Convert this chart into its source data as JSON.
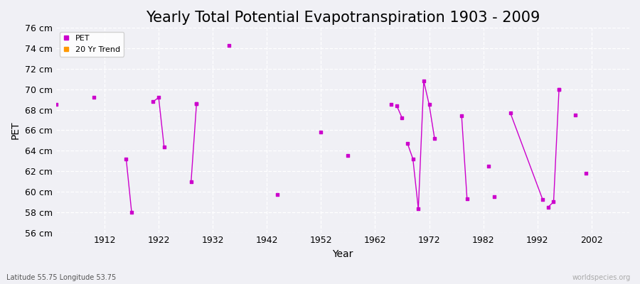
{
  "title": "Yearly Total Potential Evapotranspiration 1903 - 2009",
  "xlabel": "Year",
  "ylabel": "PET",
  "xlim": [
    1903,
    2009
  ],
  "ylim": [
    56,
    76
  ],
  "yticks": [
    56,
    58,
    60,
    62,
    64,
    66,
    68,
    70,
    72,
    74,
    76
  ],
  "ytick_labels": [
    "56 cm",
    "58 cm",
    "60 cm",
    "62 cm",
    "64 cm",
    "66 cm",
    "68 cm",
    "70 cm",
    "72 cm",
    "74 cm",
    "76 cm"
  ],
  "xticks": [
    1912,
    1922,
    1932,
    1942,
    1952,
    1962,
    1972,
    1982,
    1992,
    2002
  ],
  "pet_color": "#cc00cc",
  "trend_color": "#ff9900",
  "background_color": "#f0f0f5",
  "plot_bg_color": "#f0f0f5",
  "grid_color": "#ffffff",
  "isolated_points": [
    [
      1903,
      68.5
    ],
    [
      1910,
      69.2
    ],
    [
      1929,
      68.6
    ],
    [
      1935,
      74.3
    ],
    [
      1944,
      59.7
    ],
    [
      1952,
      65.8
    ],
    [
      1957,
      63.5
    ],
    [
      1965,
      68.5
    ],
    [
      1983,
      62.5
    ],
    [
      1984,
      59.5
    ],
    [
      1996,
      70.0
    ],
    [
      1999,
      67.5
    ],
    [
      2001,
      61.8
    ]
  ],
  "segments": [
    [
      [
        1916,
        63.2
      ],
      [
        1917,
        58.0
      ]
    ],
    [
      [
        1921,
        68.8
      ],
      [
        1922,
        69.2
      ],
      [
        1923,
        64.4
      ]
    ],
    [
      [
        1928,
        61.0
      ],
      [
        1929,
        68.6
      ]
    ],
    [
      [
        1966,
        68.4
      ],
      [
        1967,
        67.2
      ]
    ],
    [
      [
        1968,
        64.7
      ],
      [
        1969,
        63.2
      ],
      [
        1970,
        58.3
      ],
      [
        1971,
        70.8
      ],
      [
        1972,
        68.5
      ],
      [
        1973,
        65.2
      ]
    ],
    [
      [
        1978,
        67.4
      ],
      [
        1979,
        59.3
      ]
    ],
    [
      [
        1987,
        67.7
      ],
      [
        1993,
        59.2
      ]
    ],
    [
      [
        1994,
        58.5
      ],
      [
        1995,
        59.0
      ],
      [
        1996,
        70.0
      ]
    ]
  ],
  "title_fontsize": 15,
  "label_fontsize": 10,
  "tick_fontsize": 9,
  "watermark": "worldspecies.org",
  "subtitle": "Latitude 55.75 Longitude 53.75"
}
